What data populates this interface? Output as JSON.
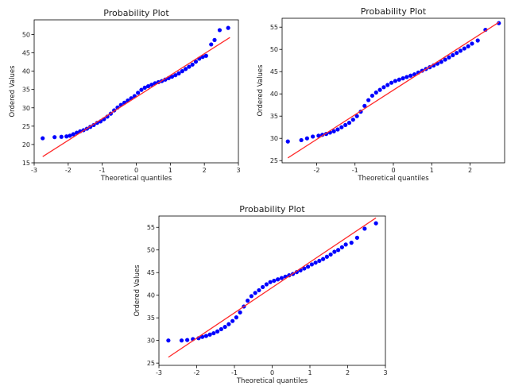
{
  "colors": {
    "points": "#0000ff",
    "fit_line": "#ff2a2a",
    "axes": "#000000",
    "background": "#ffffff"
  },
  "chart_data": [
    {
      "type": "scatter",
      "title": "Probability Plot",
      "xlabel": "Theoretical quantiles",
      "ylabel": "Ordered Values",
      "xlim": [
        -3,
        3
      ],
      "ylim": [
        15,
        54
      ],
      "xticks": [
        -3,
        -2,
        -1,
        0,
        1,
        2,
        3
      ],
      "yticks": [
        15,
        20,
        25,
        30,
        35,
        40,
        45,
        50
      ],
      "grid": false,
      "fit_line": {
        "x": [
          -2.75,
          2.75
        ],
        "y": [
          16.7,
          49.2
        ]
      },
      "series": [
        {
          "x": [
            -2.75,
            -2.4,
            -2.2,
            -2.05,
            -1.95,
            -1.85,
            -1.75,
            -1.65,
            -1.55,
            -1.45,
            -1.35,
            -1.25,
            -1.15,
            -1.05,
            -0.95,
            -0.85,
            -0.75,
            -0.65,
            -0.55,
            -0.45,
            -0.35,
            -0.25,
            -0.15,
            -0.05,
            0.05,
            0.15,
            0.25,
            0.35,
            0.45,
            0.55,
            0.65,
            0.75,
            0.85,
            0.95,
            1.05,
            1.15,
            1.25,
            1.35,
            1.45,
            1.55,
            1.65,
            1.75,
            1.85,
            1.95,
            2.05,
            2.2,
            2.3,
            2.45,
            2.7
          ],
          "y": [
            21.7,
            22.0,
            22.1,
            22.2,
            22.4,
            22.8,
            23.2,
            23.6,
            23.9,
            24.3,
            24.8,
            25.3,
            25.9,
            26.3,
            26.9,
            27.6,
            28.4,
            29.3,
            30.1,
            30.8,
            31.4,
            32.0,
            32.6,
            33.2,
            34.1,
            34.9,
            35.5,
            35.9,
            36.3,
            36.7,
            37.0,
            37.3,
            37.7,
            38.1,
            38.5,
            38.9,
            39.4,
            40.0,
            40.6,
            41.2,
            41.8,
            42.6,
            43.4,
            43.9,
            44.2,
            47.3,
            48.5,
            51.2,
            51.8
          ]
        }
      ]
    },
    {
      "type": "scatter",
      "title": "Probability Plot",
      "xlabel": "Theoretical quantiles",
      "ylabel": "Ordered Values",
      "xlim": [
        -2.9,
        2.9
      ],
      "ylim": [
        24.5,
        57
      ],
      "xticks": [
        -2,
        -1,
        0,
        1,
        2
      ],
      "yticks": [
        25,
        30,
        35,
        40,
        45,
        50,
        55
      ],
      "grid": false,
      "fit_line": {
        "x": [
          -2.75,
          2.75
        ],
        "y": [
          25.6,
          56.1
        ]
      },
      "series": [
        {
          "x": [
            -2.75,
            -2.4,
            -2.25,
            -2.1,
            -1.95,
            -1.85,
            -1.75,
            -1.65,
            -1.55,
            -1.45,
            -1.35,
            -1.25,
            -1.15,
            -1.05,
            -0.95,
            -0.85,
            -0.75,
            -0.65,
            -0.55,
            -0.45,
            -0.35,
            -0.25,
            -0.15,
            -0.05,
            0.05,
            0.15,
            0.25,
            0.35,
            0.45,
            0.55,
            0.65,
            0.75,
            0.85,
            0.95,
            1.05,
            1.15,
            1.25,
            1.35,
            1.45,
            1.55,
            1.65,
            1.75,
            1.85,
            1.95,
            2.05,
            2.2,
            2.4,
            2.75
          ],
          "y": [
            29.3,
            29.6,
            30.0,
            30.4,
            30.6,
            30.8,
            31.0,
            31.3,
            31.6,
            32.0,
            32.5,
            33.0,
            33.5,
            34.2,
            35.0,
            36.0,
            37.3,
            38.6,
            39.6,
            40.3,
            40.9,
            41.5,
            42.0,
            42.5,
            42.9,
            43.2,
            43.5,
            43.8,
            44.1,
            44.4,
            44.8,
            45.2,
            45.6,
            46.0,
            46.4,
            46.8,
            47.2,
            47.7,
            48.2,
            48.7,
            49.2,
            49.7,
            50.2,
            50.7,
            51.3,
            52.0,
            54.4,
            55.9
          ]
        }
      ]
    },
    {
      "type": "scatter",
      "title": "Probability Plot",
      "xlabel": "Theoretical quantiles",
      "ylabel": "Ordered Values",
      "xlim": [
        -3,
        3
      ],
      "ylim": [
        24.5,
        57.5
      ],
      "xticks": [
        -3,
        -2,
        -1,
        0,
        1,
        2,
        3
      ],
      "yticks": [
        25,
        30,
        35,
        40,
        45,
        50,
        55
      ],
      "grid": false,
      "fit_line": {
        "x": [
          -2.75,
          2.75
        ],
        "y": [
          26.3,
          57.1
        ]
      },
      "series": [
        {
          "x": [
            -2.75,
            -2.4,
            -2.25,
            -2.1,
            -1.95,
            -1.85,
            -1.75,
            -1.65,
            -1.55,
            -1.45,
            -1.35,
            -1.25,
            -1.15,
            -1.05,
            -0.95,
            -0.85,
            -0.75,
            -0.65,
            -0.55,
            -0.45,
            -0.35,
            -0.25,
            -0.15,
            -0.05,
            0.05,
            0.15,
            0.25,
            0.35,
            0.45,
            0.55,
            0.65,
            0.75,
            0.85,
            0.95,
            1.05,
            1.15,
            1.25,
            1.35,
            1.45,
            1.55,
            1.65,
            1.75,
            1.85,
            1.95,
            2.1,
            2.25,
            2.45,
            2.75
          ],
          "y": [
            30.0,
            30.0,
            30.1,
            30.3,
            30.5,
            30.8,
            31.0,
            31.3,
            31.6,
            32.0,
            32.5,
            33.0,
            33.6,
            34.3,
            35.1,
            36.2,
            37.5,
            38.8,
            39.8,
            40.5,
            41.1,
            41.8,
            42.4,
            42.9,
            43.2,
            43.5,
            43.8,
            44.1,
            44.4,
            44.7,
            45.1,
            45.5,
            45.9,
            46.3,
            46.8,
            47.2,
            47.6,
            48.0,
            48.5,
            49.0,
            49.6,
            50.0,
            50.6,
            51.2,
            51.6,
            52.7,
            54.7,
            55.9
          ]
        }
      ]
    }
  ]
}
